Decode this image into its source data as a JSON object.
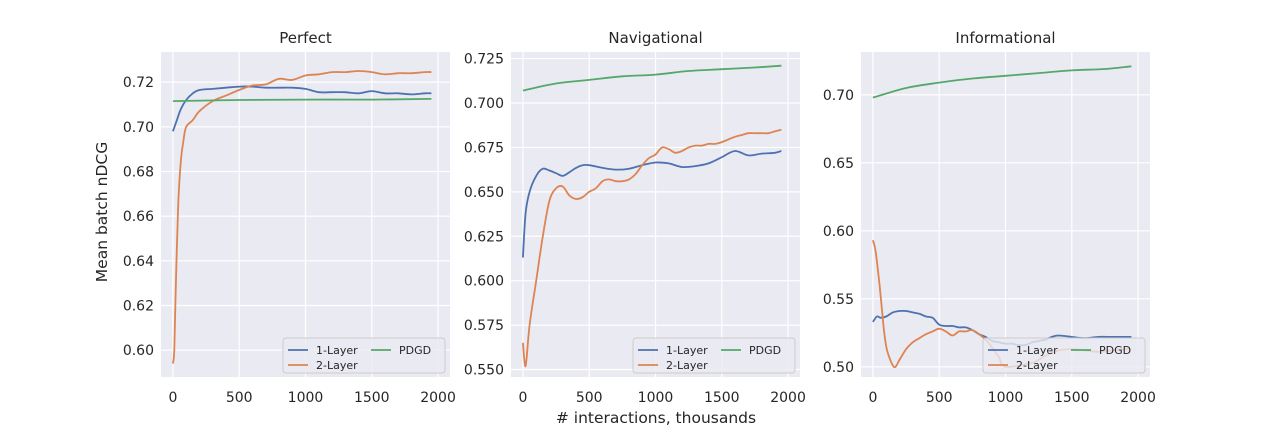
{
  "figure": {
    "ylabel": "Mean batch nDCG",
    "xlabel": "# interactions, thousands"
  },
  "colors": {
    "1-Layer": "#4c72b0",
    "2-Layer": "#dd8452",
    "PDGD": "#55a868"
  },
  "chart_data": [
    {
      "type": "line",
      "title": "Perfect",
      "xlabel": "# interactions, thousands",
      "ylabel": "Mean batch nDCG",
      "xlim": [
        -90,
        2090
      ],
      "ylim": [
        0.588,
        0.7335
      ],
      "xticks": [
        0,
        500,
        1000,
        1500,
        2000
      ],
      "yticks": [
        0.6,
        0.62,
        0.64,
        0.66,
        0.68,
        0.7,
        0.72
      ],
      "ytick_labels": [
        "0.60",
        "0.62",
        "0.64",
        "0.66",
        "0.68",
        "0.70",
        "0.72"
      ],
      "grid": true,
      "legend": {
        "placement": "lower right",
        "ncol": 2,
        "entries": [
          "1-Layer",
          "2-Layer",
          "PDGD"
        ]
      },
      "series": [
        {
          "name": "1-Layer",
          "x": [
            0,
            30,
            60,
            100,
            150,
            200,
            300,
            400,
            500,
            600,
            700,
            800,
            900,
            1000,
            1100,
            1200,
            1300,
            1400,
            1500,
            1600,
            1700,
            1800,
            1900,
            1950
          ],
          "y": [
            0.698,
            0.703,
            0.708,
            0.712,
            0.715,
            0.7165,
            0.717,
            0.7175,
            0.718,
            0.718,
            0.7175,
            0.7175,
            0.7175,
            0.717,
            0.7155,
            0.7155,
            0.7155,
            0.715,
            0.716,
            0.715,
            0.715,
            0.7145,
            0.715,
            0.715
          ]
        },
        {
          "name": "2-Layer",
          "x": [
            0,
            10,
            20,
            40,
            60,
            80,
            100,
            150,
            200,
            300,
            400,
            500,
            600,
            700,
            800,
            900,
            1000,
            1100,
            1200,
            1300,
            1400,
            1500,
            1600,
            1700,
            1800,
            1900,
            1950
          ],
          "y": [
            0.594,
            0.6,
            0.625,
            0.665,
            0.685,
            0.694,
            0.7,
            0.703,
            0.707,
            0.7115,
            0.714,
            0.7165,
            0.7185,
            0.719,
            0.7215,
            0.721,
            0.723,
            0.7235,
            0.7245,
            0.7245,
            0.725,
            0.7245,
            0.7235,
            0.724,
            0.724,
            0.7245,
            0.7245
          ]
        },
        {
          "name": "PDGD",
          "x": [
            0,
            500,
            1000,
            1500,
            1950
          ],
          "y": [
            0.7115,
            0.712,
            0.7122,
            0.7122,
            0.7125
          ]
        }
      ]
    },
    {
      "type": "line",
      "title": "Navigational",
      "xlabel": "# interactions, thousands",
      "ylabel": "",
      "xlim": [
        -90,
        2090
      ],
      "ylim": [
        0.5458,
        0.7287
      ],
      "xticks": [
        0,
        500,
        1000,
        1500,
        2000
      ],
      "yticks": [
        0.55,
        0.575,
        0.6,
        0.625,
        0.65,
        0.675,
        0.7,
        0.725
      ],
      "ytick_labels": [
        "0.550",
        "0.575",
        "0.600",
        "0.625",
        "0.650",
        "0.675",
        "0.700",
        "0.725"
      ],
      "grid": true,
      "legend": {
        "placement": "lower right",
        "ncol": 2,
        "entries": [
          "1-Layer",
          "2-Layer",
          "PDGD"
        ]
      },
      "series": [
        {
          "name": "1-Layer",
          "x": [
            0,
            20,
            50,
            100,
            150,
            200,
            250,
            300,
            350,
            400,
            450,
            500,
            600,
            700,
            800,
            900,
            1000,
            1100,
            1200,
            1300,
            1400,
            1500,
            1600,
            1700,
            1800,
            1900,
            1950
          ],
          "y": [
            0.613,
            0.638,
            0.65,
            0.659,
            0.663,
            0.662,
            0.6605,
            0.659,
            0.661,
            0.6635,
            0.665,
            0.665,
            0.6635,
            0.6625,
            0.663,
            0.665,
            0.6665,
            0.666,
            0.664,
            0.6645,
            0.666,
            0.6695,
            0.673,
            0.6705,
            0.6715,
            0.672,
            0.673
          ]
        },
        {
          "name": "2-Layer",
          "x": [
            0,
            20,
            50,
            100,
            150,
            200,
            250,
            300,
            350,
            400,
            450,
            500,
            550,
            600,
            650,
            700,
            750,
            800,
            850,
            900,
            950,
            1000,
            1050,
            1100,
            1150,
            1200,
            1250,
            1300,
            1350,
            1400,
            1450,
            1500,
            1600,
            1650,
            1700,
            1750,
            1800,
            1850,
            1900,
            1950
          ],
          "y": [
            0.565,
            0.552,
            0.575,
            0.6,
            0.625,
            0.645,
            0.652,
            0.653,
            0.648,
            0.646,
            0.647,
            0.65,
            0.652,
            0.656,
            0.657,
            0.656,
            0.656,
            0.657,
            0.66,
            0.665,
            0.669,
            0.671,
            0.675,
            0.674,
            0.672,
            0.673,
            0.675,
            0.676,
            0.676,
            0.677,
            0.677,
            0.678,
            0.681,
            0.682,
            0.683,
            0.683,
            0.683,
            0.683,
            0.684,
            0.685
          ]
        },
        {
          "name": "PDGD",
          "x": [
            0,
            250,
            500,
            750,
            1000,
            1250,
            1500,
            1750,
            1950
          ],
          "y": [
            0.707,
            0.711,
            0.713,
            0.715,
            0.716,
            0.718,
            0.719,
            0.72,
            0.721
          ]
        }
      ]
    },
    {
      "type": "line",
      "title": "Informational",
      "xlabel": "# interactions, thousands",
      "ylabel": "",
      "xlim": [
        -90,
        2090
      ],
      "ylim": [
        0.4925,
        0.7315
      ],
      "xticks": [
        0,
        500,
        1000,
        1500,
        2000
      ],
      "yticks": [
        0.5,
        0.55,
        0.6,
        0.65,
        0.7
      ],
      "ytick_labels": [
        "0.50",
        "0.55",
        "0.60",
        "0.65",
        "0.70"
      ],
      "grid": true,
      "legend": {
        "placement": "lower right",
        "ncol": 2,
        "entries": [
          "1-Layer",
          "2-Layer",
          "PDGD"
        ]
      },
      "series": [
        {
          "name": "1-Layer",
          "x": [
            0,
            30,
            60,
            100,
            150,
            200,
            250,
            300,
            350,
            400,
            450,
            500,
            550,
            600,
            650,
            700,
            750,
            800,
            850,
            900,
            950,
            1000,
            1050,
            1100,
            1150,
            1200,
            1250,
            1300,
            1350,
            1400,
            1500,
            1600,
            1700,
            1800,
            1900,
            1950
          ],
          "y": [
            0.533,
            0.537,
            0.536,
            0.537,
            0.54,
            0.541,
            0.541,
            0.54,
            0.539,
            0.537,
            0.536,
            0.531,
            0.53,
            0.53,
            0.529,
            0.529,
            0.527,
            0.524,
            0.522,
            0.519,
            0.518,
            0.517,
            0.517,
            0.516,
            0.516,
            0.518,
            0.519,
            0.52,
            0.522,
            0.523,
            0.522,
            0.521,
            0.522,
            0.522,
            0.522,
            0.522
          ]
        },
        {
          "name": "2-Layer",
          "x": [
            0,
            20,
            50,
            80,
            100,
            120,
            150,
            170,
            200,
            250,
            300,
            350,
            400,
            450,
            500,
            550,
            600,
            650,
            700,
            750,
            800,
            850,
            900,
            950,
            1000,
            1200,
            1300,
            1400,
            1500,
            1600,
            1700,
            1800,
            1900,
            1950
          ],
          "y": [
            0.593,
            0.585,
            0.56,
            0.53,
            0.515,
            0.508,
            0.501,
            0.5,
            0.505,
            0.513,
            0.518,
            0.521,
            0.524,
            0.526,
            0.528,
            0.526,
            0.523,
            0.526,
            0.526,
            0.527,
            0.524,
            0.52,
            0.514,
            0.507,
            0.5,
            0.503,
            0.508,
            0.512,
            0.513,
            0.512,
            0.511,
            0.512,
            0.513,
            0.513
          ]
        },
        {
          "name": "PDGD",
          "x": [
            0,
            250,
            500,
            750,
            1000,
            1250,
            1500,
            1750,
            1950
          ],
          "y": [
            0.698,
            0.705,
            0.709,
            0.712,
            0.714,
            0.716,
            0.718,
            0.719,
            0.721
          ]
        }
      ]
    }
  ]
}
